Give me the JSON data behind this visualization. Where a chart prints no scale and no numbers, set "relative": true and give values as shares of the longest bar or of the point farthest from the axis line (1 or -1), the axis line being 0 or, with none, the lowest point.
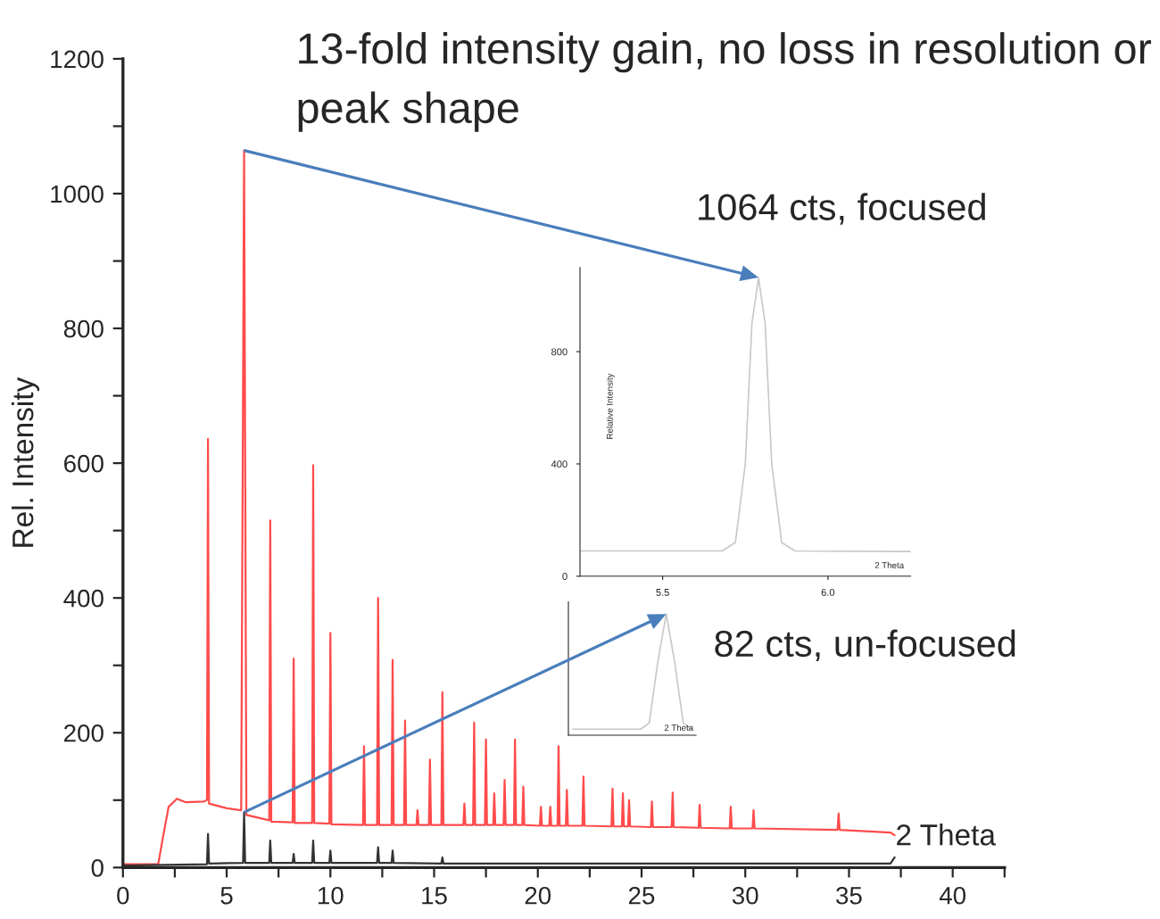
{
  "chart_data": [
    {
      "type": "line",
      "xlabel": "2 Theta",
      "ylabel": "Rel. Intensity",
      "xlim": [
        0,
        42.5
      ],
      "ylim": [
        0,
        1200
      ],
      "xticks": [
        0,
        {
          "value": 2.5,
          "label": null
        },
        5,
        {
          "value": 7.5,
          "label": null
        },
        10,
        {
          "value": 12.5,
          "label": null
        },
        15,
        {
          "value": 17.5,
          "label": null
        },
        20,
        {
          "value": 22.5,
          "label": null
        },
        25,
        {
          "value": 27.5,
          "label": null
        },
        30,
        {
          "value": 32.5,
          "label": null
        },
        35,
        {
          "value": 37.5,
          "label": null
        },
        40,
        {
          "value": 42.5,
          "label": null
        }
      ],
      "yticks": [
        0,
        {
          "value": 100,
          "label": null
        },
        200,
        {
          "value": 300,
          "label": null
        },
        400,
        {
          "value": 500,
          "label": null
        },
        600,
        {
          "value": 700,
          "label": null
        },
        800,
        {
          "value": 900,
          "label": null
        },
        1000,
        {
          "value": 1100,
          "label": null
        },
        1200
      ],
      "grid": false,
      "legend": false,
      "marker": "none",
      "line_style": "solid",
      "annotations": [
        "13-fold intensity gain, no loss in resolution or peak shape",
        "1064 cts, focused",
        "82 cts, un-focused"
      ],
      "series": [
        {
          "color": "#ff4b4b",
          "x": [
            0,
            1.7,
            1.9,
            2.2,
            2.6,
            3.0,
            3.9,
            4.05,
            4.1,
            4.15,
            5.0,
            5.7,
            5.84,
            5.95,
            7.05,
            7.1,
            7.15,
            8.18,
            8.23,
            8.28,
            9.12,
            9.17,
            9.22,
            9.95,
            10.0,
            10.05,
            11.57,
            11.62,
            11.67,
            12.25,
            12.3,
            12.35,
            12.95,
            13.0,
            13.05,
            13.55,
            13.6,
            13.65,
            14.15,
            14.2,
            14.25,
            14.75,
            14.8,
            14.85,
            15.35,
            15.4,
            15.45,
            16.41,
            16.46,
            16.51,
            16.88,
            16.93,
            16.98,
            17.45,
            17.5,
            17.55,
            17.85,
            17.9,
            17.95,
            18.35,
            18.4,
            18.45,
            18.85,
            18.9,
            18.95,
            19.25,
            19.3,
            19.35,
            20.1,
            20.15,
            20.2,
            20.55,
            20.6,
            20.65,
            20.95,
            21.0,
            21.05,
            21.35,
            21.4,
            21.45,
            22.15,
            22.2,
            22.25,
            23.55,
            23.6,
            23.65,
            24.05,
            24.1,
            24.15,
            24.35,
            24.4,
            24.45,
            25.45,
            25.5,
            25.55,
            26.45,
            26.5,
            26.55,
            27.75,
            27.8,
            27.85,
            29.25,
            29.3,
            29.35,
            30.35,
            30.4,
            30.45,
            34.45,
            34.5,
            34.55,
            37.0,
            37.2
          ],
          "values": [
            5,
            5,
            40,
            90,
            102,
            97,
            98,
            100,
            636,
            95,
            88,
            85,
            1064,
            78,
            70,
            515,
            68,
            67,
            310,
            66,
            66,
            597,
            66,
            65,
            348,
            64,
            63,
            180,
            63,
            63,
            400,
            63,
            63,
            308,
            63,
            63,
            218,
            63,
            63,
            85,
            63,
            63,
            160,
            63,
            63,
            260,
            63,
            63,
            95,
            63,
            63,
            215,
            63,
            63,
            190,
            63,
            63,
            110,
            63,
            63,
            130,
            63,
            63,
            190,
            63,
            63,
            120,
            63,
            62,
            90,
            62,
            62,
            90,
            62,
            62,
            180,
            62,
            62,
            115,
            62,
            62,
            135,
            62,
            61,
            117,
            61,
            61,
            110,
            61,
            61,
            100,
            61,
            60,
            98,
            60,
            60,
            111,
            60,
            59,
            93,
            59,
            58,
            90,
            58,
            58,
            85,
            58,
            56,
            80,
            56,
            52,
            48
          ]
        },
        {
          "color": "#333333",
          "x": [
            0,
            4.05,
            4.1,
            4.15,
            5.79,
            5.84,
            5.89,
            7.05,
            7.1,
            7.15,
            8.18,
            8.23,
            8.28,
            9.12,
            9.17,
            9.22,
            9.95,
            10.0,
            10.05,
            12.25,
            12.3,
            12.35,
            12.95,
            13.0,
            13.05,
            15.35,
            15.4,
            15.45,
            37.0,
            37.2
          ],
          "values": [
            3,
            5,
            50,
            6,
            7,
            82,
            7,
            7,
            40,
            7,
            7,
            20,
            7,
            7,
            40,
            7,
            7,
            25,
            7,
            7,
            30,
            7,
            7,
            25,
            7,
            6,
            15,
            6,
            6,
            15
          ]
        }
      ]
    },
    {
      "type": "line",
      "xlabel": "2 Theta",
      "ylabel": "Relative Intensity",
      "xlim": [
        5.25,
        6.25
      ],
      "ylim": [
        0,
        1100
      ],
      "xticks": [
        5.5,
        {
          "value": 6.0,
          "label": "6.0"
        }
      ],
      "yticks": [
        0,
        400,
        800
      ],
      "legend": false,
      "series": [
        {
          "color": "#c8c8c8",
          "x": [
            5.25,
            5.68,
            5.72,
            5.75,
            5.77,
            5.79,
            5.81,
            5.83,
            5.86,
            5.9,
            6.25
          ],
          "values": [
            90,
            90,
            120,
            400,
            900,
            1064,
            900,
            400,
            120,
            90,
            88
          ]
        }
      ]
    },
    {
      "type": "line",
      "xlabel": "2 Theta",
      "relative": true,
      "legend": false,
      "categories": [
        null,
        null,
        null,
        null,
        null,
        null,
        null,
        null,
        null,
        null,
        null,
        null,
        null,
        null,
        null
      ],
      "series": [
        {
          "color": "#c8c8c8",
          "values": [
            0.05,
            0.05,
            0.05,
            0.05,
            0.05,
            0.05,
            0.05,
            0.05,
            0.05,
            0.1,
            0.6,
            1,
            0.6,
            0.1,
            0.05
          ]
        }
      ]
    }
  ]
}
